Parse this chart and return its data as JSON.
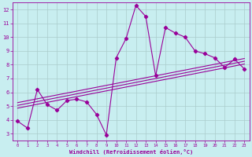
{
  "xlabel": "Windchill (Refroidissement éolien,°C)",
  "xlim": [
    -0.5,
    23.5
  ],
  "ylim": [
    2.5,
    12.5
  ],
  "xticks": [
    0,
    1,
    2,
    3,
    4,
    5,
    6,
    7,
    8,
    9,
    10,
    11,
    12,
    13,
    14,
    15,
    16,
    17,
    18,
    19,
    20,
    21,
    22,
    23
  ],
  "yticks": [
    3,
    4,
    5,
    6,
    7,
    8,
    9,
    10,
    11,
    12
  ],
  "bg_color": "#c8eef0",
  "line_color": "#990099",
  "grid_color": "#aacccc",
  "main_series_x": [
    0,
    1,
    2,
    3,
    4,
    5,
    6,
    7,
    8,
    9,
    10,
    11,
    12,
    13,
    14,
    15,
    16,
    17,
    18,
    19,
    20,
    21,
    22,
    23
  ],
  "main_series_y": [
    3.9,
    3.4,
    6.2,
    5.1,
    4.7,
    5.4,
    5.5,
    5.3,
    4.4,
    2.9,
    8.5,
    9.9,
    12.3,
    11.5,
    7.2,
    10.7,
    10.3,
    10.0,
    9.0,
    8.8,
    8.5,
    7.8,
    8.4,
    7.7
  ],
  "reg_line1_x": [
    0,
    23
  ],
  "reg_line1_y": [
    5.05,
    8.25
  ],
  "reg_line2_x": [
    0,
    23
  ],
  "reg_line2_y": [
    5.25,
    8.45
  ],
  "reg_line3_x": [
    0,
    23
  ],
  "reg_line3_y": [
    4.85,
    8.05
  ]
}
